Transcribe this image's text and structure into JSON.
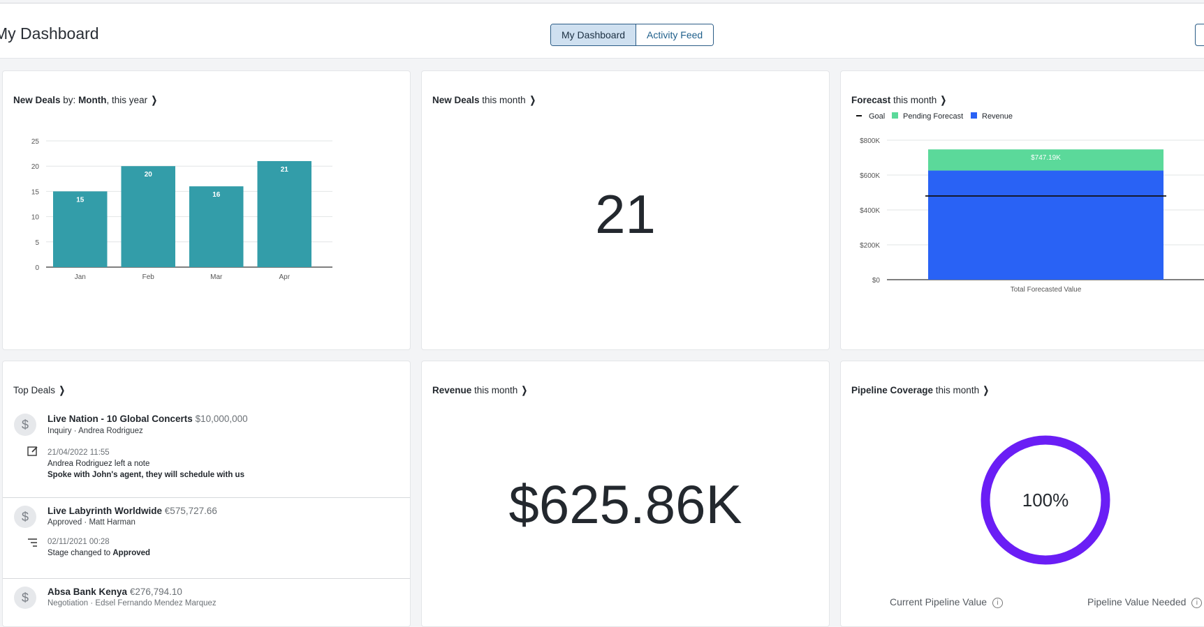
{
  "header": {
    "title": "My Dashboard",
    "tabs": [
      {
        "label": "My Dashboard",
        "active": true
      },
      {
        "label": "Activity Feed",
        "active": false
      }
    ]
  },
  "cards": {
    "new_deals_month_chart": {
      "title_bold": "New Deals",
      "title_mid": " by: ",
      "title_bold2": "Month",
      "title_rest": ", this year"
    },
    "new_deals_this_month": {
      "title_bold": "New Deals",
      "title_rest": " this month",
      "value": "21"
    },
    "forecast": {
      "title_bold": "Forecast",
      "title_rest": " this month"
    },
    "top_deals": {
      "title": "Top Deals",
      "deals": [
        {
          "name": "Live Nation - 10 Global Concerts",
          "value": "$10,000,000",
          "stage_owner": "Inquiry · Andrea Rodriguez",
          "activity_icon": "note-edit-icon",
          "activity_date": "21/04/2022 11:55",
          "activity_text": "Andrea Rodriguez left a note",
          "activity_detail": "Spoke with John's agent, they will schedule with us"
        },
        {
          "name": "Live Labyrinth Worldwide",
          "value": "€575,727.66",
          "stage_owner": "Approved · Matt Harman",
          "activity_icon": "stage-change-icon",
          "activity_date": "02/11/2021 00:28",
          "activity_text": "Stage changed to ",
          "activity_text_bold": "Approved"
        },
        {
          "name": "Absa Bank Kenya",
          "value": "€276,794.10",
          "stage_owner": "Negotiation · Edsel Fernando Mendez Marquez"
        }
      ]
    },
    "revenue": {
      "title_bold": "Revenue",
      "title_rest": " this month",
      "value": "$625.86K"
    },
    "pipeline_coverage": {
      "title_bold": "Pipeline Coverage",
      "title_rest": " this month",
      "percent_label": "100%",
      "percent": 100,
      "ring_color": "#6a1ef5",
      "current_label": "Current Pipeline Value",
      "needed_label": "Pipeline Value Needed"
    }
  },
  "chart_data": [
    {
      "type": "bar",
      "title": "New Deals by: Month, this year",
      "categories": [
        "Jan",
        "Feb",
        "Mar",
        "Apr"
      ],
      "values": [
        15,
        20,
        16,
        21
      ],
      "data_labels": [
        "15",
        "20",
        "16",
        "21"
      ],
      "ylim": [
        0,
        25
      ],
      "yticks": [
        "0",
        "5",
        "10",
        "15",
        "20",
        "25"
      ],
      "grid": true,
      "color": "#339da9"
    },
    {
      "type": "bar",
      "stacked": true,
      "title": "Forecast this month",
      "categories": [
        "Total Forecasted Value"
      ],
      "series": [
        {
          "name": "Revenue",
          "values": [
            625.86
          ],
          "color": "#2962f5"
        },
        {
          "name": "Pending Forecast",
          "values": [
            121.33
          ],
          "color": "#5bd99a"
        }
      ],
      "goal": {
        "name": "Goal",
        "value": 480,
        "color": "#111111"
      },
      "total_label": "$747.19K",
      "ylim": [
        0,
        800
      ],
      "yticks": [
        "$0",
        "$200K",
        "$400K",
        "$600K",
        "$800K"
      ],
      "units": "thousands of dollars",
      "legend": "top-left",
      "grid": true
    }
  ]
}
